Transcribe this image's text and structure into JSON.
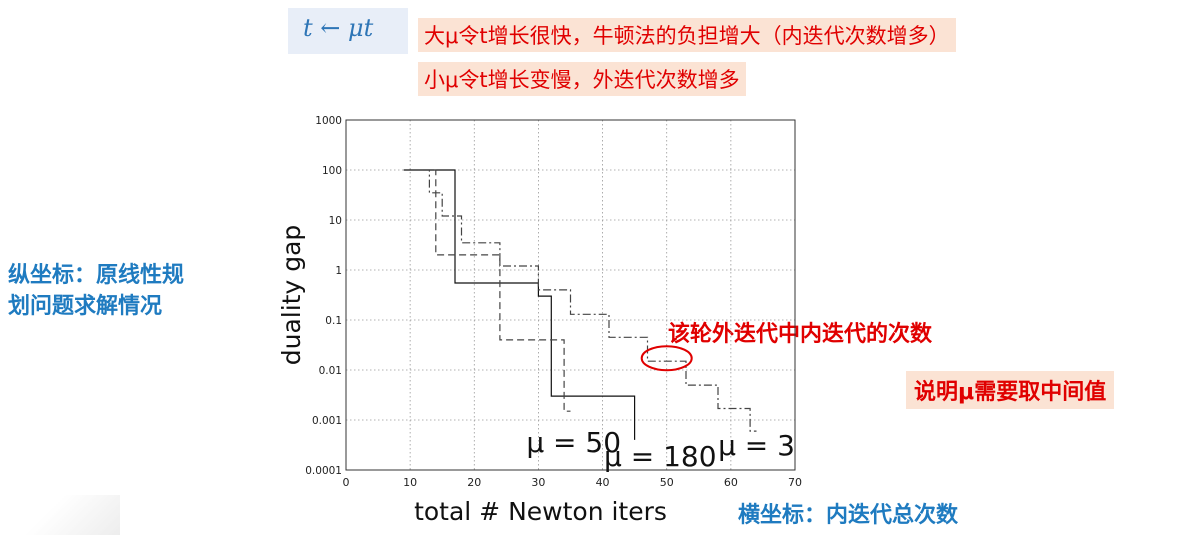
{
  "formula": {
    "text": "t ← μt"
  },
  "notes": [
    "大μ令t增长很快，牛顿法的负担增大（内迭代次数增多）",
    "小μ令t增长变慢，外迭代次数增多"
  ],
  "left_label": {
    "line1": "纵坐标：原线性规",
    "line2": "划问题求解情况"
  },
  "bottom_label": "横坐标：内迭代总次数",
  "annotation": "该轮外迭代中内迭代的次数",
  "conclusion": "说明μ需要取中间值",
  "colors": {
    "blue_text": "#1f7bc0",
    "red_text": "#e00000",
    "note_bg": "#fbe3d4",
    "formula_bg": "#e8eef8"
  },
  "chart_data": {
    "type": "line",
    "xlabel": "total # Newton iters",
    "ylabel": "duality gap",
    "xlim": [
      0,
      70
    ],
    "ylim": [
      0.0001,
      1000
    ],
    "yscale": "log",
    "grid": true,
    "xticks": [
      0,
      10,
      20,
      30,
      40,
      50,
      60,
      70
    ],
    "xtick_labels": [
      "0",
      "10",
      "20",
      "30",
      "40",
      "50",
      "60",
      "70"
    ],
    "yticks": [
      0.0001,
      0.001,
      0.01,
      0.1,
      1,
      10,
      100,
      1000
    ],
    "ytick_labels": [
      "0.0001",
      "0.001",
      "0.01",
      "0.1",
      "1",
      "10",
      "100",
      "1000"
    ],
    "series": [
      {
        "name": "μ = 50",
        "style": "solid",
        "x": [
          9,
          17,
          17,
          30,
          30,
          32,
          32,
          45,
          45
        ],
        "y": [
          100,
          100,
          0.55,
          0.55,
          0.3,
          0.3,
          0.003,
          0.003,
          0.0004
        ]
      },
      {
        "name": "μ = 180",
        "style": "dashed",
        "x": [
          12,
          12,
          14,
          14,
          24,
          24,
          34,
          34,
          35
        ],
        "y": [
          100,
          100,
          100,
          2,
          2,
          0.04,
          0.04,
          0.0015,
          0.0015
        ]
      },
      {
        "name": "μ = 3",
        "style": "dashdot",
        "x": [
          12,
          13,
          13,
          15,
          15,
          18,
          18,
          24,
          24,
          30,
          30,
          35,
          35,
          41,
          41,
          47,
          47,
          53,
          53,
          58,
          58,
          63,
          63,
          64
        ],
        "y": [
          100,
          100,
          35,
          35,
          12,
          12,
          3.5,
          3.5,
          1.2,
          1.2,
          0.4,
          0.4,
          0.13,
          0.13,
          0.045,
          0.045,
          0.015,
          0.015,
          0.005,
          0.005,
          0.0017,
          0.0017,
          0.0006,
          0.0006
        ]
      }
    ],
    "curve_labels": [
      {
        "text": "μ = 50",
        "series": 0
      },
      {
        "text": "μ = 180",
        "series": 1
      },
      {
        "text": "μ = 3",
        "series": 2
      }
    ]
  }
}
